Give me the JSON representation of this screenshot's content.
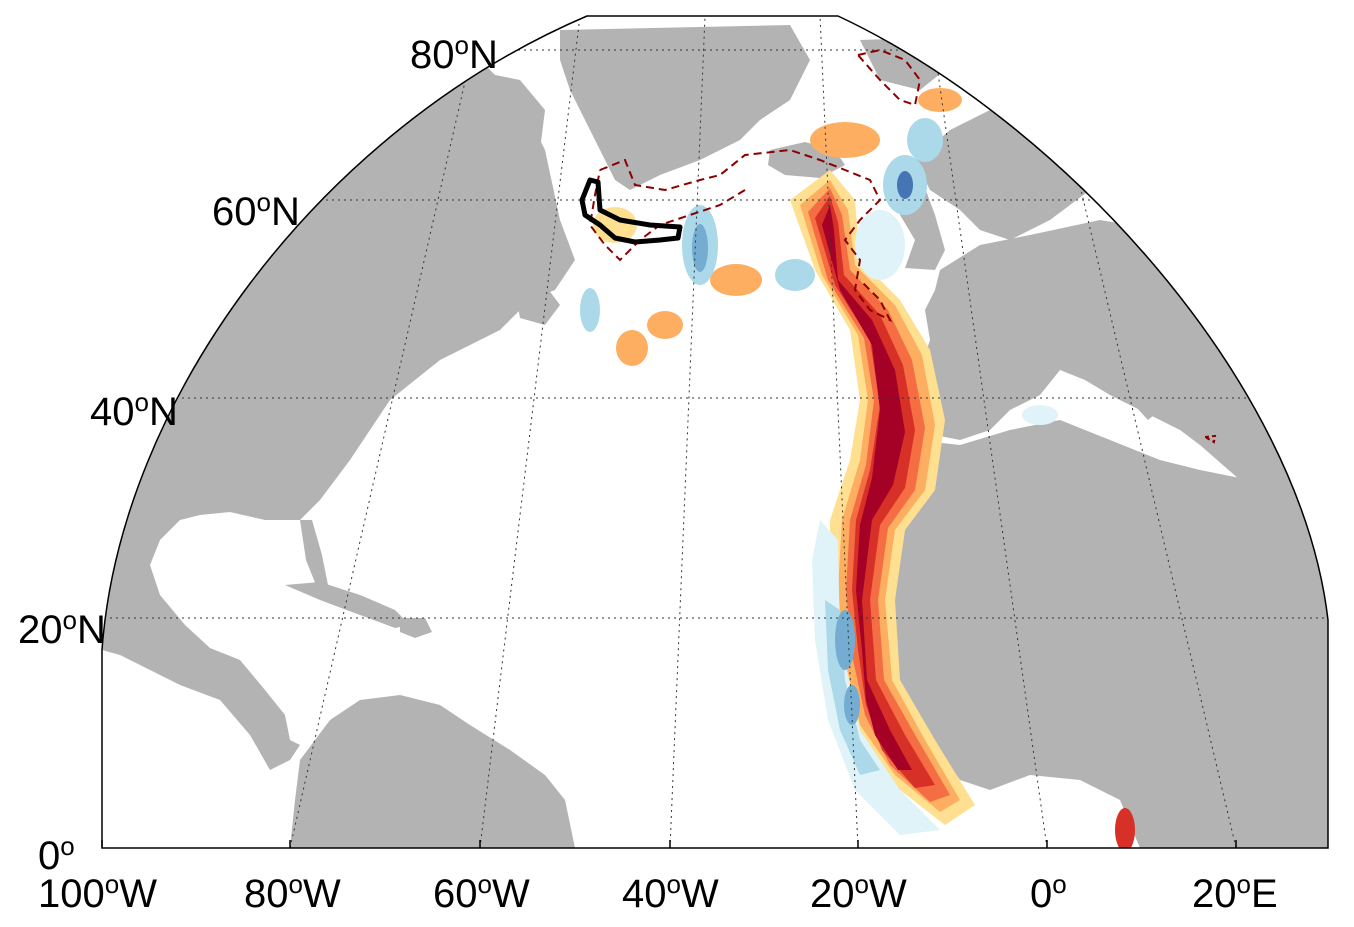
{
  "map": {
    "projection": "conic-like lat/lon map, North Atlantic",
    "lat_labels": [
      {
        "deg": "80",
        "suffix": "N"
      },
      {
        "deg": "60",
        "suffix": "N"
      },
      {
        "deg": "40",
        "suffix": "N"
      },
      {
        "deg": "20",
        "suffix": "N"
      },
      {
        "deg": "0",
        "suffix": ""
      }
    ],
    "lon_labels": [
      {
        "deg": "100",
        "suffix": "W"
      },
      {
        "deg": "80",
        "suffix": "W"
      },
      {
        "deg": "60",
        "suffix": "W"
      },
      {
        "deg": "40",
        "suffix": "W"
      },
      {
        "deg": "20",
        "suffix": "W"
      },
      {
        "deg": "0",
        "suffix": ""
      },
      {
        "deg": "20",
        "suffix": "E"
      }
    ],
    "colors": {
      "land": "#b3b3b3",
      "ocean": "#ffffff",
      "grid": "#333333",
      "frame": "#000000",
      "dark_red": "#a50026",
      "red": "#d73027",
      "orange": "#f46d43",
      "light_orange": "#fdae61",
      "yellow": "#fee090",
      "light_blue": "#e0f3f8",
      "blue": "#abd9e9",
      "mid_blue": "#74add1",
      "dark_blue": "#4575b4",
      "dashed_contour": "#8b0000",
      "region_outline": "#000000"
    }
  }
}
